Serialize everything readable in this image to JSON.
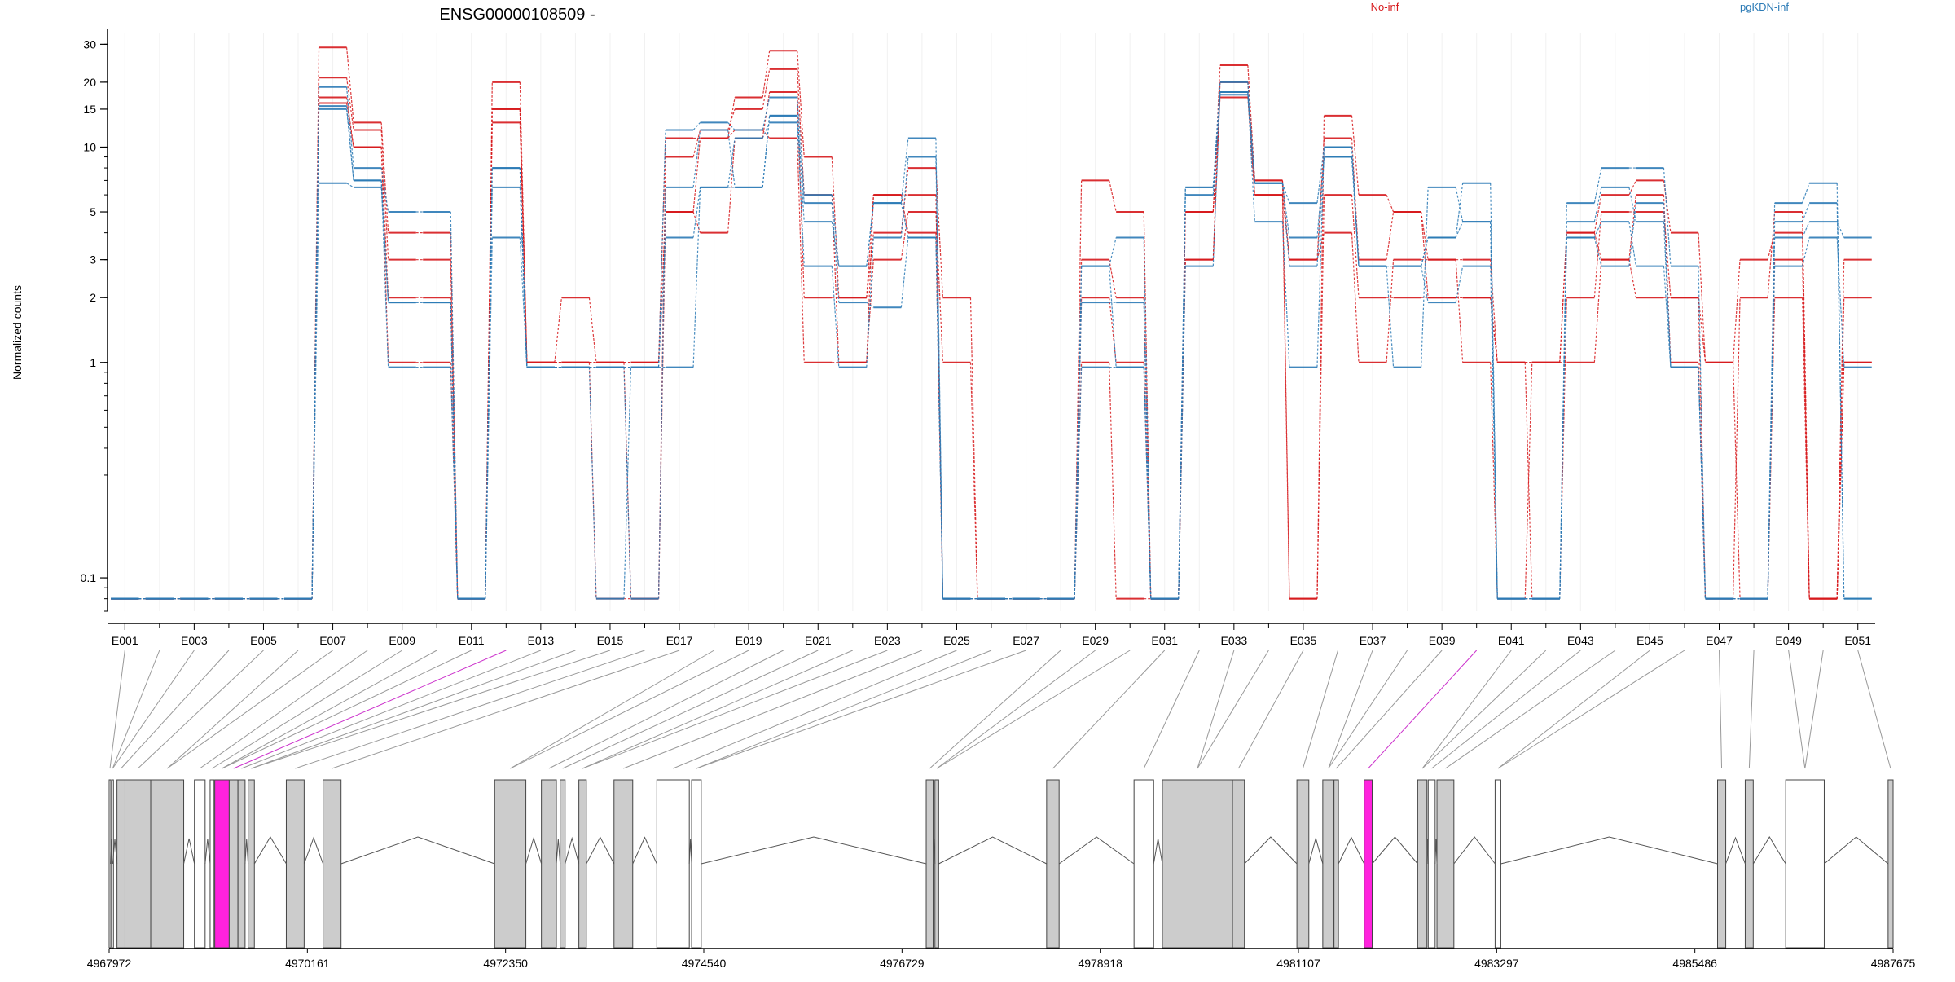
{
  "title": "ENSG00000108509 -",
  "legend": {
    "placement": "top-right",
    "items": [
      {
        "label": "No-inf",
        "color": "#d7191c"
      },
      {
        "label": "pgKDN-inf",
        "color": "#2c7bb6"
      }
    ]
  },
  "chart_data": {
    "type": "line",
    "title": "ENSG00000108509 -",
    "ylabel": "Normalized counts",
    "xlabel": "",
    "y_scale": "log",
    "ylim": [
      0.07,
      34
    ],
    "y_major_ticks": [
      0.1,
      1,
      2,
      3,
      5,
      10,
      15,
      20,
      30
    ],
    "y_tick_labels": [
      "0.1",
      "1",
      "2",
      "3",
      "5",
      "10",
      "15",
      "20",
      "30"
    ],
    "grid": "vertical light gridlines",
    "exons": [
      "E001",
      "E002",
      "E003",
      "E004",
      "E005",
      "E006",
      "E007",
      "E008",
      "E009",
      "E010",
      "E011",
      "E012",
      "E013",
      "E014",
      "E015",
      "E016",
      "E017",
      "E018",
      "E019",
      "E020",
      "E021",
      "E022",
      "E023",
      "E024",
      "E025",
      "E026",
      "E027",
      "E028",
      "E029",
      "E030",
      "E031",
      "E032",
      "E033",
      "E034",
      "E035",
      "E036",
      "E037",
      "E038",
      "E039",
      "E040",
      "E041",
      "E042",
      "E043",
      "E044",
      "E045",
      "E046",
      "E047",
      "E048",
      "E049",
      "E050",
      "E051"
    ],
    "x_tick_labels": [
      "E001",
      "E003",
      "E005",
      "E007",
      "E009",
      "E011",
      "E013",
      "E015",
      "E017",
      "E019",
      "E021",
      "E023",
      "E025",
      "E027",
      "E029",
      "E031",
      "E033",
      "E035",
      "E037",
      "E039",
      "E041",
      "E043",
      "E045",
      "E047",
      "E049",
      "E051"
    ],
    "highlighted_exons": [
      "E012",
      "E040"
    ],
    "series": [
      {
        "group": "No-inf",
        "values": [
          0.08,
          0.08,
          0.08,
          0.08,
          0.08,
          0.08,
          29,
          13,
          4,
          4,
          0.08,
          20,
          1,
          2,
          1,
          1,
          11,
          11,
          17,
          28,
          9,
          2,
          4,
          8,
          2,
          0.08,
          0.08,
          0.08,
          7,
          5,
          0.08,
          5,
          24,
          7,
          0.08,
          14,
          6,
          5,
          3,
          3,
          1,
          1,
          4,
          6,
          7,
          4,
          1,
          3,
          4,
          0.08,
          2
        ]
      },
      {
        "group": "No-inf",
        "values": [
          0.08,
          0.08,
          0.08,
          0.08,
          0.08,
          0.08,
          21,
          12,
          3,
          3,
          0.08,
          15,
          1,
          1,
          1,
          0.08,
          9,
          12,
          15,
          23,
          6,
          1,
          3,
          5,
          1,
          0.08,
          0.08,
          0.08,
          3,
          2,
          0.08,
          3,
          18,
          6,
          3,
          11,
          3,
          5,
          2,
          2,
          1,
          0.08,
          2,
          5,
          5,
          2,
          1,
          0.08,
          3,
          0.08,
          3
        ]
      },
      {
        "group": "No-inf",
        "values": [
          0.08,
          0.08,
          0.08,
          0.08,
          0.08,
          0.08,
          17,
          10,
          2,
          2,
          0.08,
          13,
          1,
          1,
          0.08,
          0.08,
          5,
          4,
          11,
          18,
          2,
          2,
          6,
          6,
          0.08,
          0.08,
          0.08,
          0.08,
          1,
          0.08,
          0.08,
          3,
          20,
          7,
          3,
          4,
          1,
          3,
          3,
          1,
          0.08,
          1,
          4,
          3,
          6,
          1,
          0.08,
          2,
          5,
          0.08,
          1
        ]
      },
      {
        "group": "No-inf",
        "values": [
          0.08,
          0.08,
          0.08,
          0.08,
          0.08,
          0.08,
          16,
          10,
          1,
          1,
          0.08,
          15,
          1,
          1,
          1,
          1,
          5,
          11,
          12,
          11,
          1,
          1,
          6,
          4,
          0.08,
          0.08,
          0.08,
          0.08,
          2,
          1,
          0.08,
          5,
          17,
          6,
          0.08,
          6,
          2,
          2,
          2,
          2,
          1,
          1,
          1,
          3,
          2,
          2,
          0.08,
          0.08,
          2,
          0.08,
          1
        ]
      },
      {
        "group": "pgKDN-inf",
        "values": [
          0.08,
          0.08,
          0.08,
          0.08,
          0.08,
          0.08,
          19,
          8,
          5,
          5,
          0.08,
          8,
          0.95,
          0.95,
          0.95,
          0.95,
          12,
          13,
          12,
          17,
          6,
          2.8,
          5.5,
          11,
          0.08,
          0.08,
          0.08,
          0.08,
          2.8,
          3.8,
          0.08,
          6.5,
          18,
          6.8,
          5.5,
          10,
          2.8,
          2.8,
          3.8,
          6.8,
          0.08,
          0.08,
          5.5,
          8,
          8,
          2.8,
          0.08,
          0.08,
          5.5,
          6.8,
          0.08
        ]
      },
      {
        "group": "pgKDN-inf",
        "values": [
          0.08,
          0.08,
          0.08,
          0.08,
          0.08,
          0.08,
          15,
          7,
          1.9,
          1.9,
          0.08,
          6.5,
          0.95,
          0.95,
          0.95,
          0.08,
          6.5,
          12,
          6.5,
          14,
          5.5,
          1.9,
          1.8,
          3.8,
          0.08,
          0.08,
          0.08,
          0.08,
          0.95,
          0.95,
          0.08,
          2.8,
          18,
          4.5,
          0.95,
          10,
          2.8,
          0.95,
          6.5,
          4.5,
          0.08,
          0.08,
          3.8,
          2.8,
          5.5,
          0.95,
          0.08,
          0.08,
          4.5,
          5.5,
          0.08
        ]
      },
      {
        "group": "pgKDN-inf",
        "values": [
          0.08,
          0.08,
          0.08,
          0.08,
          0.08,
          0.08,
          6.8,
          6.5,
          1.9,
          1.9,
          0.08,
          3.8,
          0.95,
          0.95,
          0.95,
          0.95,
          3.8,
          6.5,
          11,
          13,
          2.8,
          0.95,
          3.8,
          9,
          0.08,
          0.08,
          0.08,
          0.08,
          1.9,
          1.9,
          0.08,
          6.5,
          20,
          6.8,
          2.8,
          9,
          2.8,
          2.8,
          1.9,
          2.8,
          0.08,
          0.08,
          4.5,
          6.5,
          4.5,
          0.95,
          0.08,
          0.08,
          2.8,
          3.8,
          0.95
        ]
      },
      {
        "group": "pgKDN-inf",
        "values": [
          0.08,
          0.08,
          0.08,
          0.08,
          0.08,
          0.08,
          15.5,
          7,
          0.95,
          0.95,
          0.08,
          8,
          0.95,
          0.95,
          0.08,
          0.95,
          0.95,
          6.5,
          6.5,
          14,
          4.5,
          2.8,
          5.5,
          3.8,
          0.08,
          0.08,
          0.08,
          0.08,
          2.8,
          0.95,
          0.08,
          6,
          17.5,
          6.8,
          3.8,
          9,
          2.8,
          2.8,
          3.8,
          4.5,
          0.08,
          0.08,
          3.8,
          4.5,
          2.8,
          0.95,
          0.08,
          0.08,
          3.8,
          4.5,
          3.8
        ]
      }
    ],
    "genomic_axis_labels": [
      "4967972",
      "4970161",
      "4972350",
      "4974540",
      "4976729",
      "4978918",
      "4981107",
      "4983297",
      "4985486",
      "4987675"
    ]
  }
}
